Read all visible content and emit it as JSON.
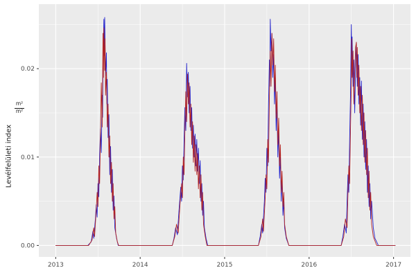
{
  "figure": {
    "background": "#FFFFFF",
    "panel_background": "#EBEBEB",
    "grid_color": "#FFFFFF",
    "axis_text_color": "#4D4D4D",
    "tick_mark_color": "#333333"
  },
  "chart_data": {
    "type": "line",
    "title": "",
    "xlabel": "",
    "ylabel": "Levélfelületi index",
    "ylabel_unit_numerator": "m²",
    "ylabel_unit_denominator": "m²",
    "xlim": [
      2012.8,
      2017.2
    ],
    "ylim": [
      -0.0013,
      0.0273
    ],
    "grid": true,
    "legend": "none",
    "x_ticks": [
      2013,
      2014,
      2015,
      2016,
      2017
    ],
    "x_tick_labels": [
      "2013",
      "2014",
      "2015",
      "2016",
      "2017"
    ],
    "x_minor_ticks": [
      2013.5,
      2014.5,
      2015.5,
      2016.5
    ],
    "y_ticks": [
      0.0,
      0.01,
      0.02
    ],
    "y_tick_labels": [
      "0.00",
      "0.01",
      "0.02"
    ],
    "y_minor_ticks": [
      0.005,
      0.015,
      0.025
    ],
    "series": [
      {
        "name": "blue-line",
        "color": "#2222CC",
        "points": [
          [
            2013.0,
            0
          ],
          [
            2013.38,
            0
          ],
          [
            2013.42,
            0.0004
          ],
          [
            2013.44,
            0.0016
          ],
          [
            2013.45,
            0.0008
          ],
          [
            2013.47,
            0.003
          ],
          [
            2013.48,
            0.0046
          ],
          [
            2013.49,
            0.0032
          ],
          [
            2013.5,
            0.007
          ],
          [
            2013.51,
            0.0055
          ],
          [
            2013.52,
            0.0102
          ],
          [
            2013.53,
            0.0132
          ],
          [
            2013.54,
            0.0105
          ],
          [
            2013.55,
            0.017
          ],
          [
            2013.555,
            0.0145
          ],
          [
            2013.56,
            0.0202
          ],
          [
            2013.57,
            0.0256
          ],
          [
            2013.575,
            0.0215
          ],
          [
            2013.58,
            0.0258
          ],
          [
            2013.59,
            0.0192
          ],
          [
            2013.6,
            0.0218
          ],
          [
            2013.605,
            0.016
          ],
          [
            2013.61,
            0.0188
          ],
          [
            2013.62,
            0.0122
          ],
          [
            2013.63,
            0.0148
          ],
          [
            2013.64,
            0.008
          ],
          [
            2013.65,
            0.0112
          ],
          [
            2013.66,
            0.006
          ],
          [
            2013.67,
            0.0086
          ],
          [
            2013.68,
            0.004
          ],
          [
            2013.69,
            0.0056
          ],
          [
            2013.7,
            0.002
          ],
          [
            2013.72,
            0.0008
          ],
          [
            2013.74,
            0
          ],
          [
            2014.38,
            0
          ],
          [
            2014.4,
            0.0008
          ],
          [
            2014.42,
            0.002
          ],
          [
            2014.44,
            0.0012
          ],
          [
            2014.46,
            0.004
          ],
          [
            2014.48,
            0.0066
          ],
          [
            2014.49,
            0.005
          ],
          [
            2014.5,
            0.009
          ],
          [
            2014.51,
            0.0074
          ],
          [
            2014.52,
            0.012
          ],
          [
            2014.53,
            0.0156
          ],
          [
            2014.54,
            0.013
          ],
          [
            2014.55,
            0.0206
          ],
          [
            2014.56,
            0.0168
          ],
          [
            2014.57,
            0.0196
          ],
          [
            2014.58,
            0.015
          ],
          [
            2014.59,
            0.018
          ],
          [
            2014.6,
            0.013
          ],
          [
            2014.61,
            0.0156
          ],
          [
            2014.62,
            0.011
          ],
          [
            2014.63,
            0.0136
          ],
          [
            2014.64,
            0.01
          ],
          [
            2014.65,
            0.0126
          ],
          [
            2014.66,
            0.009
          ],
          [
            2014.67,
            0.012
          ],
          [
            2014.68,
            0.0084
          ],
          [
            2014.69,
            0.011
          ],
          [
            2014.7,
            0.007
          ],
          [
            2014.71,
            0.0096
          ],
          [
            2014.72,
            0.005
          ],
          [
            2014.73,
            0.007
          ],
          [
            2014.74,
            0.0034
          ],
          [
            2014.75,
            0.005
          ],
          [
            2014.76,
            0.002
          ],
          [
            2014.78,
            0.0008
          ],
          [
            2014.8,
            0
          ],
          [
            2015.4,
            0
          ],
          [
            2015.42,
            0.001
          ],
          [
            2015.44,
            0.0024
          ],
          [
            2015.45,
            0.0014
          ],
          [
            2015.47,
            0.005
          ],
          [
            2015.48,
            0.0076
          ],
          [
            2015.49,
            0.006
          ],
          [
            2015.5,
            0.011
          ],
          [
            2015.51,
            0.009
          ],
          [
            2015.52,
            0.016
          ],
          [
            2015.53,
            0.021
          ],
          [
            2015.535,
            0.018
          ],
          [
            2015.54,
            0.0256
          ],
          [
            2015.55,
            0.022
          ],
          [
            2015.56,
            0.024
          ],
          [
            2015.57,
            0.019
          ],
          [
            2015.58,
            0.0216
          ],
          [
            2015.59,
            0.016
          ],
          [
            2015.6,
            0.019
          ],
          [
            2015.61,
            0.013
          ],
          [
            2015.62,
            0.016
          ],
          [
            2015.63,
            0.01
          ],
          [
            2015.64,
            0.013
          ],
          [
            2015.65,
            0.0076
          ],
          [
            2015.66,
            0.01
          ],
          [
            2015.67,
            0.005
          ],
          [
            2015.68,
            0.0076
          ],
          [
            2015.69,
            0.0034
          ],
          [
            2015.7,
            0.005
          ],
          [
            2015.71,
            0.002
          ],
          [
            2015.73,
            0.0008
          ],
          [
            2015.76,
            0
          ],
          [
            2016.38,
            0
          ],
          [
            2016.4,
            0.001
          ],
          [
            2016.42,
            0.0024
          ],
          [
            2016.44,
            0.0014
          ],
          [
            2016.45,
            0.005
          ],
          [
            2016.46,
            0.008
          ],
          [
            2016.47,
            0.006
          ],
          [
            2016.48,
            0.012
          ],
          [
            2016.49,
            0.017
          ],
          [
            2016.5,
            0.025
          ],
          [
            2016.505,
            0.021
          ],
          [
            2016.51,
            0.0236
          ],
          [
            2016.52,
            0.018
          ],
          [
            2016.53,
            0.021
          ],
          [
            2016.54,
            0.015
          ],
          [
            2016.55,
            0.0196
          ],
          [
            2016.56,
            0.023
          ],
          [
            2016.57,
            0.018
          ],
          [
            2016.58,
            0.0216
          ],
          [
            2016.59,
            0.016
          ],
          [
            2016.6,
            0.019
          ],
          [
            2016.61,
            0.0136
          ],
          [
            2016.62,
            0.0186
          ],
          [
            2016.63,
            0.012
          ],
          [
            2016.64,
            0.016
          ],
          [
            2016.65,
            0.01
          ],
          [
            2016.66,
            0.014
          ],
          [
            2016.67,
            0.0086
          ],
          [
            2016.68,
            0.012
          ],
          [
            2016.69,
            0.006
          ],
          [
            2016.7,
            0.009
          ],
          [
            2016.71,
            0.0044
          ],
          [
            2016.72,
            0.007
          ],
          [
            2016.73,
            0.003
          ],
          [
            2016.74,
            0.005
          ],
          [
            2016.76,
            0.002
          ],
          [
            2016.78,
            0.0008
          ],
          [
            2016.82,
            0
          ],
          [
            2017.02,
            0
          ]
        ]
      },
      {
        "name": "red-line",
        "color": "#B22222",
        "points": [
          [
            2013.0,
            0
          ],
          [
            2013.39,
            0
          ],
          [
            2013.43,
            0.0006
          ],
          [
            2013.45,
            0.002
          ],
          [
            2013.46,
            0.001
          ],
          [
            2013.48,
            0.004
          ],
          [
            2013.49,
            0.006
          ],
          [
            2013.5,
            0.0044
          ],
          [
            2013.51,
            0.009
          ],
          [
            2013.52,
            0.007
          ],
          [
            2013.53,
            0.0124
          ],
          [
            2013.54,
            0.0184
          ],
          [
            2013.55,
            0.0134
          ],
          [
            2013.56,
            0.024
          ],
          [
            2013.565,
            0.019
          ],
          [
            2013.57,
            0.0246
          ],
          [
            2013.58,
            0.0198
          ],
          [
            2013.585,
            0.0234
          ],
          [
            2013.59,
            0.017
          ],
          [
            2013.6,
            0.0196
          ],
          [
            2013.61,
            0.0134
          ],
          [
            2013.62,
            0.016
          ],
          [
            2013.63,
            0.01
          ],
          [
            2013.64,
            0.0124
          ],
          [
            2013.65,
            0.007
          ],
          [
            2013.66,
            0.0094
          ],
          [
            2013.67,
            0.005
          ],
          [
            2013.68,
            0.007
          ],
          [
            2013.69,
            0.003
          ],
          [
            2013.7,
            0.0044
          ],
          [
            2013.71,
            0.0014
          ],
          [
            2013.73,
            0.0004
          ],
          [
            2013.745,
            0
          ],
          [
            2014.38,
            0
          ],
          [
            2014.41,
            0.001
          ],
          [
            2014.43,
            0.0024
          ],
          [
            2014.45,
            0.0014
          ],
          [
            2014.47,
            0.0044
          ],
          [
            2014.49,
            0.007
          ],
          [
            2014.5,
            0.0054
          ],
          [
            2014.51,
            0.01
          ],
          [
            2014.52,
            0.008
          ],
          [
            2014.53,
            0.013
          ],
          [
            2014.54,
            0.0174
          ],
          [
            2014.55,
            0.014
          ],
          [
            2014.56,
            0.0194
          ],
          [
            2014.57,
            0.016
          ],
          [
            2014.58,
            0.0184
          ],
          [
            2014.59,
            0.0134
          ],
          [
            2014.6,
            0.016
          ],
          [
            2014.61,
            0.0114
          ],
          [
            2014.62,
            0.014
          ],
          [
            2014.63,
            0.0094
          ],
          [
            2014.64,
            0.0124
          ],
          [
            2014.65,
            0.0084
          ],
          [
            2014.66,
            0.0114
          ],
          [
            2014.67,
            0.008
          ],
          [
            2014.68,
            0.0104
          ],
          [
            2014.69,
            0.0064
          ],
          [
            2014.7,
            0.009
          ],
          [
            2014.71,
            0.0054
          ],
          [
            2014.72,
            0.008
          ],
          [
            2014.73,
            0.004
          ],
          [
            2014.74,
            0.006
          ],
          [
            2014.75,
            0.0024
          ],
          [
            2014.77,
            0.001
          ],
          [
            2014.79,
            0
          ],
          [
            2015.4,
            0
          ],
          [
            2015.43,
            0.001
          ],
          [
            2015.45,
            0.003
          ],
          [
            2015.46,
            0.0016
          ],
          [
            2015.48,
            0.0054
          ],
          [
            2015.49,
            0.008
          ],
          [
            2015.5,
            0.0064
          ],
          [
            2015.51,
            0.012
          ],
          [
            2015.52,
            0.0094
          ],
          [
            2015.53,
            0.017
          ],
          [
            2015.54,
            0.022
          ],
          [
            2015.55,
            0.018
          ],
          [
            2015.56,
            0.024
          ],
          [
            2015.57,
            0.0204
          ],
          [
            2015.58,
            0.0234
          ],
          [
            2015.59,
            0.0174
          ],
          [
            2015.6,
            0.0204
          ],
          [
            2015.61,
            0.0144
          ],
          [
            2015.62,
            0.0174
          ],
          [
            2015.63,
            0.0114
          ],
          [
            2015.64,
            0.0144
          ],
          [
            2015.65,
            0.009
          ],
          [
            2015.66,
            0.0114
          ],
          [
            2015.67,
            0.006
          ],
          [
            2015.68,
            0.0084
          ],
          [
            2015.69,
            0.0044
          ],
          [
            2015.7,
            0.006
          ],
          [
            2015.71,
            0.0024
          ],
          [
            2015.73,
            0.001
          ],
          [
            2015.76,
            0
          ],
          [
            2016.38,
            0
          ],
          [
            2016.41,
            0.001
          ],
          [
            2016.43,
            0.003
          ],
          [
            2016.45,
            0.002
          ],
          [
            2016.46,
            0.006
          ],
          [
            2016.47,
            0.009
          ],
          [
            2016.48,
            0.007
          ],
          [
            2016.49,
            0.013
          ],
          [
            2016.5,
            0.018
          ],
          [
            2016.505,
            0.0234
          ],
          [
            2016.51,
            0.019
          ],
          [
            2016.52,
            0.022
          ],
          [
            2016.53,
            0.016
          ],
          [
            2016.54,
            0.0194
          ],
          [
            2016.55,
            0.0224
          ],
          [
            2016.56,
            0.023
          ],
          [
            2016.565,
            0.019
          ],
          [
            2016.57,
            0.0224
          ],
          [
            2016.58,
            0.017
          ],
          [
            2016.59,
            0.0204
          ],
          [
            2016.6,
            0.015
          ],
          [
            2016.61,
            0.018
          ],
          [
            2016.62,
            0.013
          ],
          [
            2016.63,
            0.017
          ],
          [
            2016.64,
            0.0114
          ],
          [
            2016.65,
            0.015
          ],
          [
            2016.66,
            0.0094
          ],
          [
            2016.67,
            0.013
          ],
          [
            2016.68,
            0.008
          ],
          [
            2016.69,
            0.011
          ],
          [
            2016.7,
            0.0054
          ],
          [
            2016.71,
            0.0084
          ],
          [
            2016.72,
            0.004
          ],
          [
            2016.73,
            0.006
          ],
          [
            2016.74,
            0.0024
          ],
          [
            2016.76,
            0.001
          ],
          [
            2016.8,
            0
          ],
          [
            2017.02,
            0
          ]
        ]
      }
    ]
  }
}
